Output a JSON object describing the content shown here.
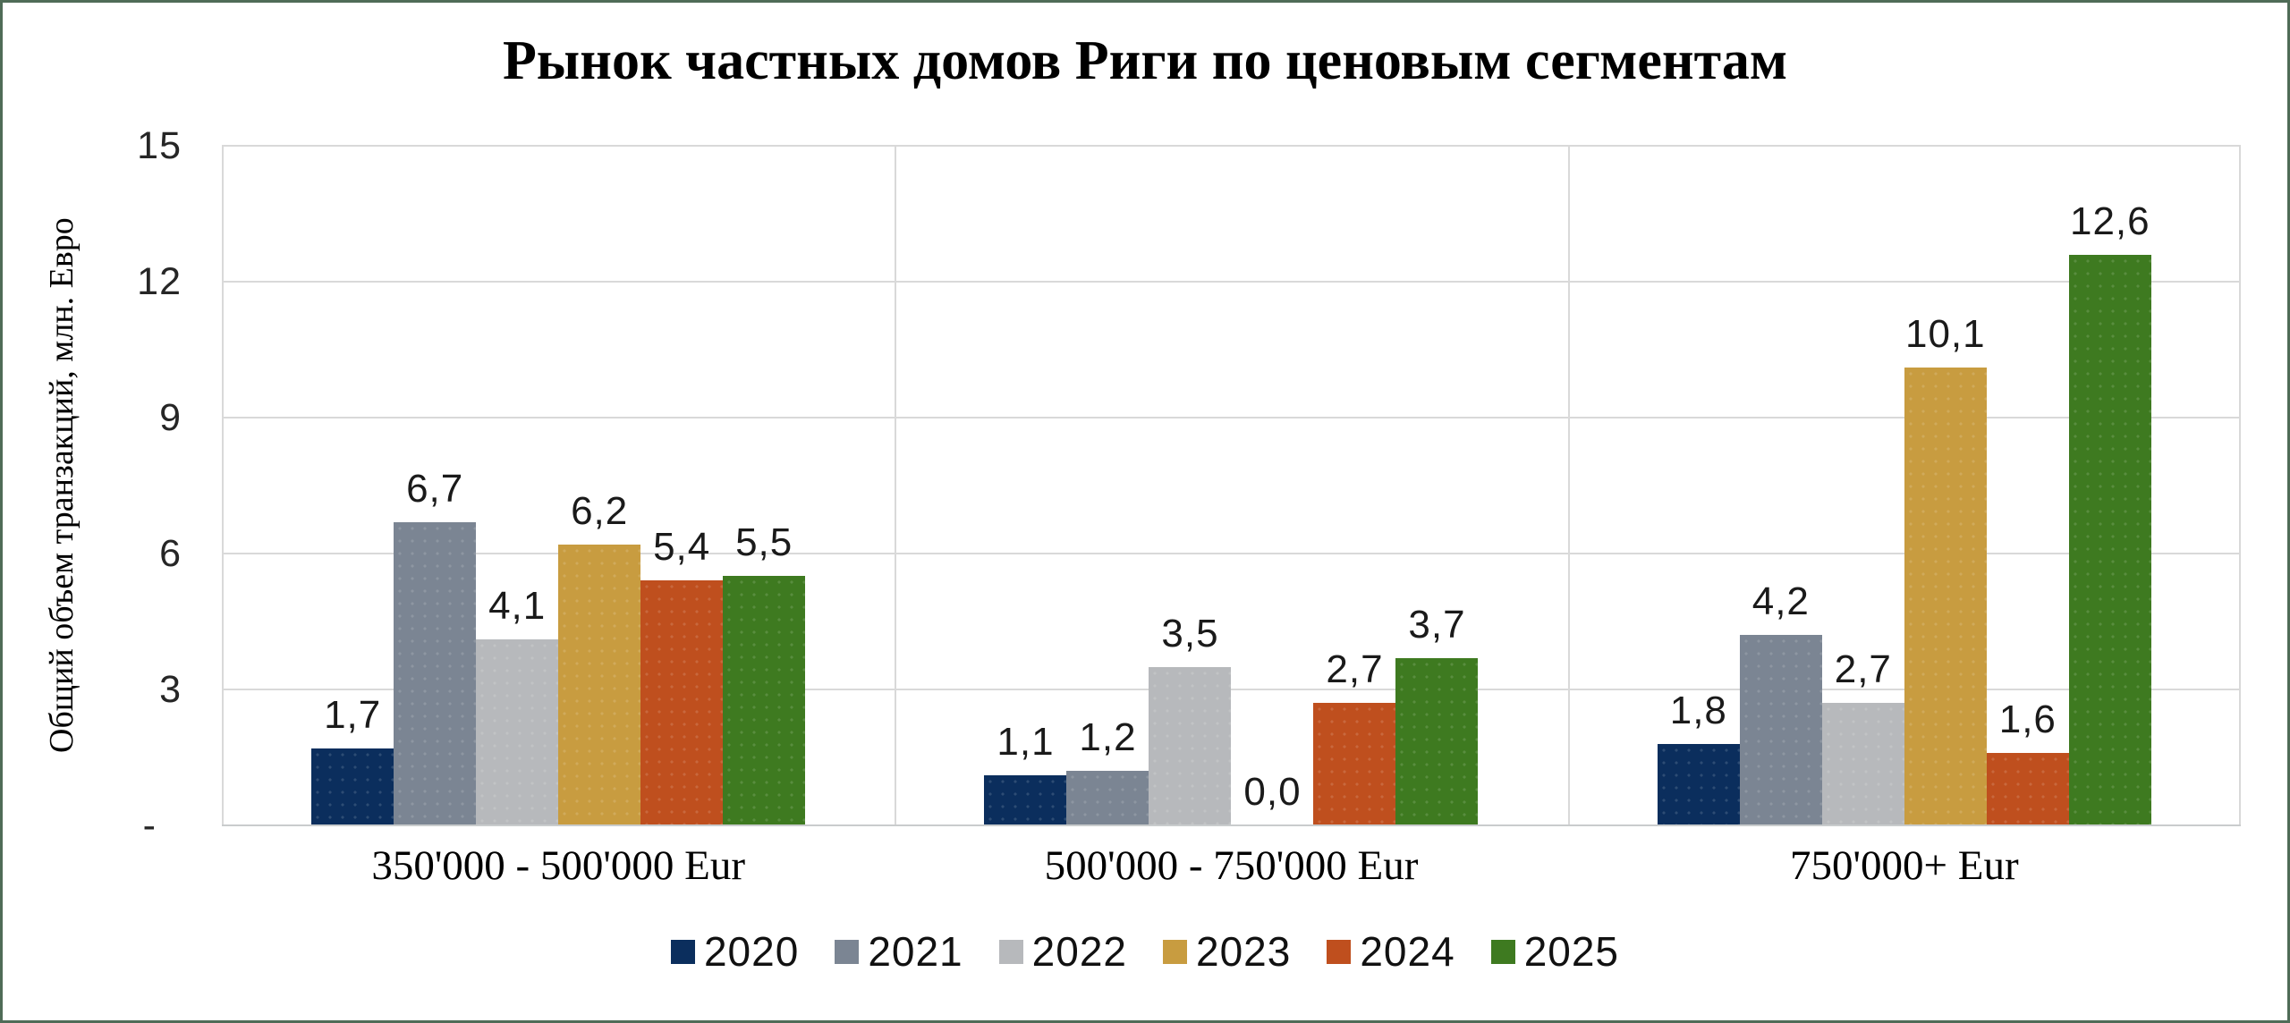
{
  "frame_color": "#4f6c57",
  "grid_color": "#d9d9d9",
  "chart_data": {
    "type": "bar",
    "title": "Рынок частных домов Риги по ценовым сегментам",
    "ylabel": "Общий объем транзакций, млн. Евро",
    "xlabel": "",
    "ylim": [
      0,
      15
    ],
    "ytick_step": 3,
    "yticks": [
      {
        "value": 0,
        "label": "-"
      },
      {
        "value": 3,
        "label": "3"
      },
      {
        "value": 6,
        "label": "6"
      },
      {
        "value": 9,
        "label": "9"
      },
      {
        "value": 12,
        "label": "12"
      },
      {
        "value": 15,
        "label": "15"
      }
    ],
    "grid": true,
    "panel_separators": true,
    "legend_position": "bottom",
    "decimal_separator": ",",
    "categories": [
      "350'000 - 500'000 Eur",
      "500'000 - 750'000 Eur",
      "750'000+ Eur"
    ],
    "series": [
      {
        "name": "2020",
        "color": "#0b2e5d",
        "values": [
          1.7,
          1.1,
          1.8
        ],
        "labels": [
          "1,7",
          "1,1",
          "1,8"
        ]
      },
      {
        "name": "2021",
        "color": "#7b8593",
        "values": [
          6.7,
          1.2,
          4.2
        ],
        "labels": [
          "6,7",
          "1,2",
          "4,2"
        ]
      },
      {
        "name": "2022",
        "color": "#b7b9bc",
        "values": [
          4.1,
          3.5,
          2.7
        ],
        "labels": [
          "4,1",
          "3,5",
          "2,7"
        ]
      },
      {
        "name": "2023",
        "color": "#c89c40",
        "values": [
          6.2,
          0.0,
          10.1
        ],
        "labels": [
          "6,2",
          "0,0",
          "10,1"
        ]
      },
      {
        "name": "2024",
        "color": "#bf4f1e",
        "values": [
          5.4,
          2.7,
          1.6
        ],
        "labels": [
          "5,4",
          "2,7",
          "1,6"
        ]
      },
      {
        "name": "2025",
        "color": "#3e7a20",
        "values": [
          5.5,
          3.7,
          12.6
        ],
        "labels": [
          "5,5",
          "3,7",
          "12,6"
        ]
      }
    ]
  }
}
